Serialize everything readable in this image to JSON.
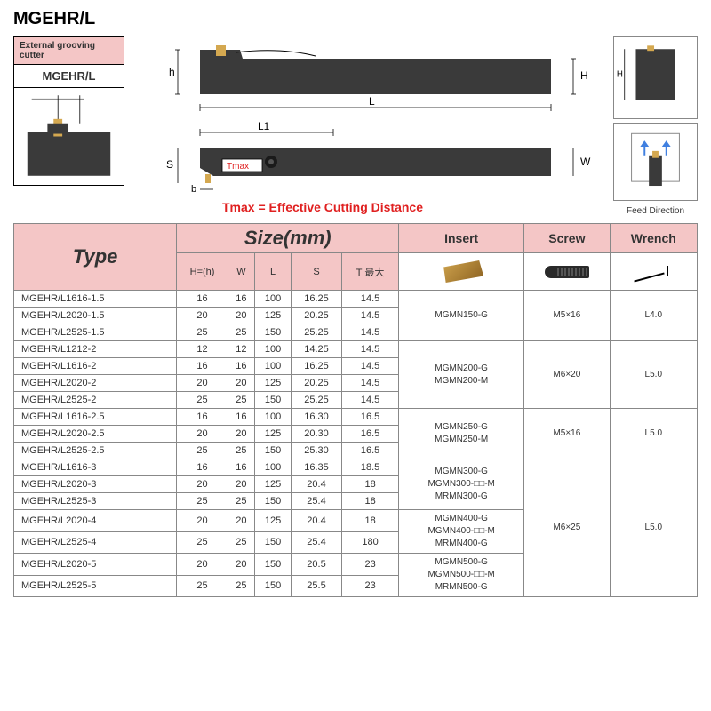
{
  "title": "MGEHR/L",
  "left_box": {
    "label": "External grooving cutter",
    "model": "MGEHR/L"
  },
  "diagram": {
    "dims": {
      "h": "h",
      "H_label": "H",
      "L": "L",
      "L1": "L1",
      "S": "S",
      "b": "b",
      "Tmax": "Tmax",
      "W": "W"
    },
    "tmax_note": "Tmax = Effective Cutting Distance",
    "feed_direction": "Feed Direction"
  },
  "table": {
    "headers": {
      "type": "Type",
      "size": "Size(mm)",
      "insert": "Insert",
      "screw": "Screw",
      "wrench": "Wrench",
      "sub": [
        "H=(h)",
        "W",
        "L",
        "S",
        "T 最大"
      ]
    },
    "groups": [
      {
        "insert": "MGMN150-G",
        "screw": "M5×16",
        "wrench": "L4.0",
        "rows": [
          {
            "type": "MGEHR/L1616-1.5",
            "h": "16",
            "w": "16",
            "l": "100",
            "s": "16.25",
            "t": "14.5"
          },
          {
            "type": "MGEHR/L2020-1.5",
            "h": "20",
            "w": "20",
            "l": "125",
            "s": "20.25",
            "t": "14.5"
          },
          {
            "type": "MGEHR/L2525-1.5",
            "h": "25",
            "w": "25",
            "l": "150",
            "s": "25.25",
            "t": "14.5"
          }
        ]
      },
      {
        "insert": "MGMN200-G\nMGMN200-M",
        "screw": "M6×20",
        "wrench": "L5.0",
        "rows": [
          {
            "type": "MGEHR/L1212-2",
            "h": "12",
            "w": "12",
            "l": "100",
            "s": "14.25",
            "t": "14.5"
          },
          {
            "type": "MGEHR/L1616-2",
            "h": "16",
            "w": "16",
            "l": "100",
            "s": "16.25",
            "t": "14.5"
          },
          {
            "type": "MGEHR/L2020-2",
            "h": "20",
            "w": "20",
            "l": "125",
            "s": "20.25",
            "t": "14.5"
          },
          {
            "type": "MGEHR/L2525-2",
            "h": "25",
            "w": "25",
            "l": "150",
            "s": "25.25",
            "t": "14.5"
          }
        ]
      },
      {
        "insert": "MGMN250-G\nMGMN250-M",
        "screw": "M5×16",
        "wrench": "L5.0",
        "rows": [
          {
            "type": "MGEHR/L1616-2.5",
            "h": "16",
            "w": "16",
            "l": "100",
            "s": "16.30",
            "t": "16.5"
          },
          {
            "type": "MGEHR/L2020-2.5",
            "h": "20",
            "w": "20",
            "l": "125",
            "s": "20.30",
            "t": "16.5"
          },
          {
            "type": "MGEHR/L2525-2.5",
            "h": "25",
            "w": "25",
            "l": "150",
            "s": "25.30",
            "t": "16.5"
          }
        ]
      },
      {
        "insert": "MGMN300-G\nMGMN300-□□-M\nMRMN300-G",
        "rows": [
          {
            "type": "MGEHR/L1616-3",
            "h": "16",
            "w": "16",
            "l": "100",
            "s": "16.35",
            "t": "18.5"
          },
          {
            "type": "MGEHR/L2020-3",
            "h": "20",
            "w": "20",
            "l": "125",
            "s": "20.4",
            "t": "18"
          },
          {
            "type": "MGEHR/L2525-3",
            "h": "25",
            "w": "25",
            "l": "150",
            "s": "25.4",
            "t": "18"
          }
        ]
      },
      {
        "insert": "MGMN400-G\nMGMN400-□□-M\nMRMN400-G",
        "rows": [
          {
            "type": "MGEHR/L2020-4",
            "h": "20",
            "w": "20",
            "l": "125",
            "s": "20.4",
            "t": "18"
          },
          {
            "type": "MGEHR/L2525-4",
            "h": "25",
            "w": "25",
            "l": "150",
            "s": "25.4",
            "t": "180"
          }
        ]
      },
      {
        "insert": "MGMN500-G\nMGMN500-□□-M\nMRMN500-G",
        "rows": [
          {
            "type": "MGEHR/L2020-5",
            "h": "20",
            "w": "20",
            "l": "150",
            "s": "20.5",
            "t": "23"
          },
          {
            "type": "MGEHR/L2525-5",
            "h": "25",
            "w": "25",
            "l": "150",
            "s": "25.5",
            "t": "23"
          }
        ]
      }
    ],
    "big_screw": "M6×25",
    "big_wrench": "L5.0"
  },
  "colors": {
    "pink": "#f4c6c6",
    "tool_body": "#3a3a3a",
    "insert": "#d4a850",
    "red": "#e02020",
    "blue": "#4080e0"
  }
}
